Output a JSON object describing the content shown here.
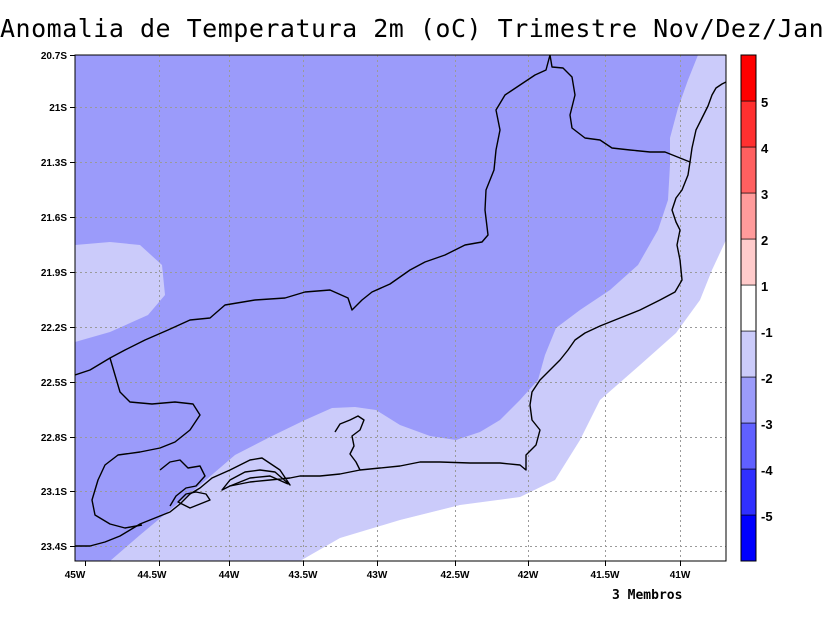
{
  "title": "Anomalia de Temperatura 2m (oC) Trimestre Nov/Dez/Jan",
  "footer": "3 Membros",
  "map": {
    "region": "Rio de Janeiro",
    "projection": "lat-lon",
    "lon_range": [
      "45W",
      "40.7W"
    ],
    "lat_range": [
      "20.7S",
      "23.6S"
    ],
    "grid": "dotted"
  },
  "axes": {
    "x_ticks": [
      "45W",
      "44.5W",
      "44W",
      "43.5W",
      "43W",
      "42.5W",
      "42W",
      "41.5W",
      "41W"
    ],
    "y_ticks": [
      "20.7S",
      "21S",
      "21.3S",
      "21.6S",
      "21.9S",
      "22.2S",
      "22.5S",
      "22.8S",
      "23.1S",
      "23.4S"
    ]
  },
  "fill_classes": [
    {
      "range": "-3 to -2",
      "color": "#9b9bfa"
    },
    {
      "range": "-2 to -1",
      "color": "#cbcbfa"
    },
    {
      "range": "-1 to 1",
      "color": "#ffffff"
    }
  ],
  "colorbar": {
    "colors": [
      "#0000ff",
      "#3030ff",
      "#6060ff",
      "#9b9bfa",
      "#cbcbfa",
      "#ffffff",
      "#ffcbcb",
      "#ff9b9b",
      "#ff6060",
      "#ff3030",
      "#ff0000"
    ],
    "labels": [
      "-5",
      "-4",
      "-3",
      "-2",
      "-1",
      "1",
      "2",
      "3",
      "4",
      "5"
    ]
  }
}
